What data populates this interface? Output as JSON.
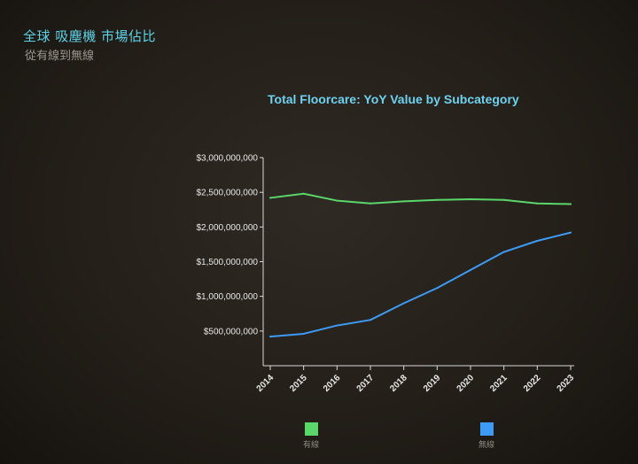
{
  "slide": {
    "title": "全球 吸塵機 市場佔比",
    "subtitle": "從有線到無線"
  },
  "colors": {
    "background": "#241f19",
    "title": "#5fd3e8",
    "chart_title": "#6fd1f0",
    "wired": "#5ad66a",
    "wireless": "#3d9bf5",
    "axis": "#d8d8d8",
    "text": "#e8e8e8"
  },
  "chart_data": {
    "type": "line",
    "title": "Total Floorcare: YoY Value by Subcategory",
    "xlabel": "",
    "ylabel": "",
    "x": [
      "2014",
      "2015",
      "2016",
      "2017",
      "2018",
      "2019",
      "2020",
      "2021",
      "2022",
      "2023"
    ],
    "y_ticks": [
      "$500,000,000",
      "$1,000,000,000",
      "$1,500,000,000",
      "$2,000,000,000",
      "$2,500,000,000",
      "$3,000,000,000"
    ],
    "y_tick_values": [
      500000000,
      1000000000,
      1500000000,
      2000000000,
      2500000000,
      3000000000
    ],
    "ylim": [
      0,
      3000000000
    ],
    "grid": false,
    "legend_placement": "bottom",
    "series": [
      {
        "name": "有線",
        "color": "#5ad66a",
        "values": [
          2420000000,
          2480000000,
          2380000000,
          2340000000,
          2370000000,
          2390000000,
          2400000000,
          2390000000,
          2340000000,
          2330000000
        ]
      },
      {
        "name": "無線",
        "color": "#3d9bf5",
        "values": [
          420000000,
          460000000,
          580000000,
          660000000,
          900000000,
          1120000000,
          1380000000,
          1640000000,
          1800000000,
          1920000000
        ]
      }
    ]
  }
}
